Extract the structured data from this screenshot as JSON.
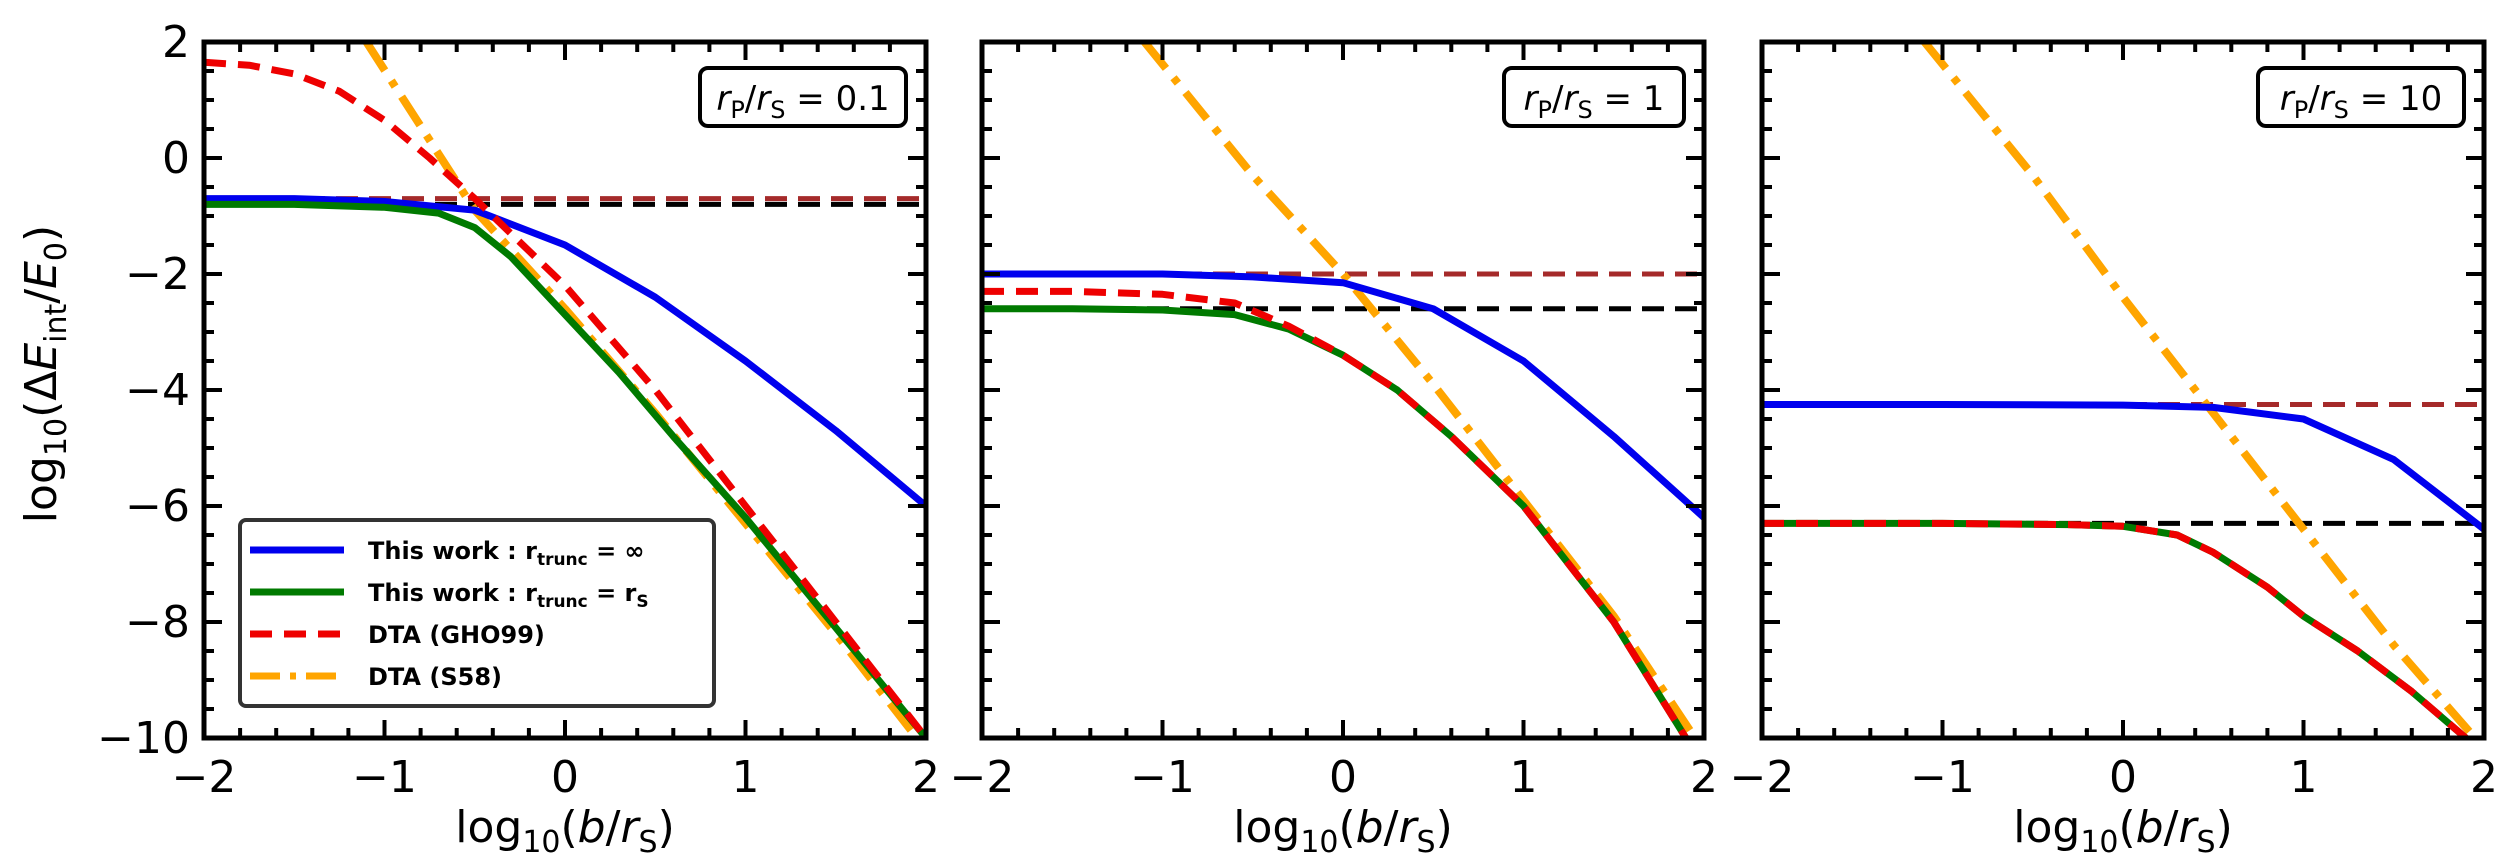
{
  "chart_data": {
    "type": "line",
    "ylabel": "log10(ΔEint/E0)",
    "xlabel": "log10(b/rS)",
    "xlim": [
      -2,
      2
    ],
    "ylim": [
      -10,
      2
    ],
    "xticks": [
      -2,
      -1,
      0,
      1,
      2
    ],
    "xtick_labels": [
      "−2",
      "−1",
      "0",
      "1",
      "2"
    ],
    "yticks": [
      -10,
      -8,
      -6,
      -4,
      -2,
      0,
      2
    ],
    "ytick_labels": [
      "−10",
      "−8",
      "−6",
      "−4",
      "−2",
      "0",
      "2"
    ],
    "legend": {
      "location": "lower-left (first panel)",
      "entries": [
        {
          "label": "This work : r",
          "sub": "trunc",
          "suffix": " = ∞",
          "color": "#0000ee",
          "style": "solid"
        },
        {
          "label": "This work : r",
          "sub": "trunc",
          "suffix": " = r",
          "suffix_sub": "S",
          "color": "#007a00",
          "style": "solid"
        },
        {
          "label": "DTA (GHO99)",
          "color": "#ee0000",
          "style": "dashed"
        },
        {
          "label": "DTA (S58)",
          "color": "#ffa500",
          "style": "dashdot"
        }
      ]
    },
    "panels": [
      {
        "annotation": "rP/rS = 0.1",
        "annotation_value": "0.1",
        "series": [
          {
            "name": "This work: r_trunc = ∞",
            "color": "#0000ee",
            "x": [
              -2,
              -1.5,
              -1,
              -0.5,
              0,
              0.5,
              1,
              1.5,
              2
            ],
            "y": [
              -0.7,
              -0.7,
              -0.75,
              -0.9,
              -1.5,
              -2.4,
              -3.5,
              -4.7,
              -6.0
            ]
          },
          {
            "name": "This work: r_trunc = rS",
            "color": "#007a00",
            "x": [
              -2,
              -1.5,
              -1,
              -0.7,
              -0.5,
              -0.3,
              0,
              0.3,
              0.6,
              1,
              1.5,
              2
            ],
            "y": [
              -0.8,
              -0.8,
              -0.85,
              -0.95,
              -1.2,
              -1.7,
              -2.7,
              -3.7,
              -4.8,
              -6.2,
              -8.1,
              -10.0
            ]
          },
          {
            "name": "DTA (GHO99)",
            "color": "#ee0000",
            "x": [
              -2,
              -1.75,
              -1.5,
              -1.25,
              -1,
              -0.75,
              -0.5,
              -0.3,
              0,
              0.5,
              1,
              1.5,
              2
            ],
            "y": [
              1.65,
              1.6,
              1.45,
              1.15,
              0.65,
              0.0,
              -0.7,
              -1.3,
              -2.2,
              -4.0,
              -6.0,
              -8.0,
              -10.0
            ]
          },
          {
            "name": "DTA (S58)",
            "color": "#ffa500",
            "x": [
              -1.1,
              -0.5,
              0,
              0.5,
              1,
              1.5,
              1.95
            ],
            "y": [
              2.0,
              -0.9,
              -2.6,
              -4.4,
              -6.3,
              -8.2,
              -10.0
            ]
          },
          {
            "name": "GHO99 limit",
            "color": "#a52a2a",
            "x": [
              -2,
              2
            ],
            "y": [
              -0.7,
              -0.7
            ]
          },
          {
            "name": "rS limit",
            "color": "#000000",
            "x": [
              -2,
              2
            ],
            "y": [
              -0.8,
              -0.8
            ]
          }
        ]
      },
      {
        "annotation": "rP/rS = 1",
        "annotation_value": "1",
        "series": [
          {
            "name": "This work: r_trunc = ∞",
            "color": "#0000ee",
            "x": [
              -2,
              -1,
              -0.5,
              0,
              0.5,
              1,
              1.5,
              2
            ],
            "y": [
              -2.0,
              -2.0,
              -2.05,
              -2.15,
              -2.6,
              -3.5,
              -4.8,
              -6.2
            ]
          },
          {
            "name": "This work: r_trunc = rS",
            "color": "#007a00",
            "x": [
              -2,
              -1.5,
              -1,
              -0.6,
              -0.3,
              0,
              0.3,
              0.6,
              1,
              1.5,
              1.9
            ],
            "y": [
              -2.6,
              -2.6,
              -2.62,
              -2.7,
              -2.95,
              -3.4,
              -4.0,
              -4.8,
              -6.0,
              -8.0,
              -10.0
            ]
          },
          {
            "name": "DTA (GHO99)",
            "color": "#ee0000",
            "x": [
              -2,
              -1.5,
              -1,
              -0.6,
              -0.3,
              0,
              0.3,
              0.6,
              1,
              1.5,
              1.9
            ],
            "y": [
              -2.3,
              -2.3,
              -2.35,
              -2.5,
              -2.9,
              -3.4,
              -4.0,
              -4.8,
              -6.0,
              -8.0,
              -10.0
            ]
          },
          {
            "name": "DTA (S58)",
            "color": "#ffa500",
            "x": [
              -1.1,
              -0.5,
              0,
              0.5,
              1,
              1.5,
              1.95
            ],
            "y": [
              2.0,
              -0.3,
              -2.0,
              -3.9,
              -5.9,
              -7.9,
              -10.0
            ]
          },
          {
            "name": "GHO99 limit",
            "color": "#a52a2a",
            "x": [
              -2,
              2
            ],
            "y": [
              -2.0,
              -2.0
            ]
          },
          {
            "name": "rS limit",
            "color": "#000000",
            "x": [
              -2,
              2
            ],
            "y": [
              -2.6,
              -2.6
            ]
          }
        ]
      },
      {
        "annotation": "rP/rS = 10",
        "annotation_value": "10",
        "series": [
          {
            "name": "This work: r_trunc = ∞",
            "color": "#0000ee",
            "x": [
              -2,
              -1,
              0,
              0.5,
              1,
              1.5,
              2
            ],
            "y": [
              -4.25,
              -4.25,
              -4.26,
              -4.3,
              -4.5,
              -5.2,
              -6.4
            ]
          },
          {
            "name": "This work: r_trunc = rS",
            "color": "#007a00",
            "x": [
              -2,
              -1,
              -0.3,
              0,
              0.3,
              0.5,
              0.8,
              1.0,
              1.3,
              1.6,
              1.9
            ],
            "y": [
              -6.3,
              -6.3,
              -6.32,
              -6.35,
              -6.5,
              -6.8,
              -7.4,
              -7.9,
              -8.5,
              -9.2,
              -10.0
            ]
          },
          {
            "name": "DTA (GHO99)",
            "color": "#ee0000",
            "x": [
              -2,
              -1,
              -0.3,
              0,
              0.3,
              0.5,
              0.8,
              1.0,
              1.3,
              1.6,
              1.9
            ],
            "y": [
              -6.3,
              -6.3,
              -6.32,
              -6.35,
              -6.5,
              -6.8,
              -7.4,
              -7.9,
              -8.5,
              -9.2,
              -10.0
            ]
          },
          {
            "name": "DTA (S58)",
            "color": "#ffa500",
            "x": [
              -1.1,
              -0.5,
              0,
              0.5,
              1,
              1.5,
              1.95
            ],
            "y": [
              2.0,
              -0.3,
              -2.4,
              -4.4,
              -6.4,
              -8.4,
              -10.0
            ]
          },
          {
            "name": "GHO99 limit",
            "color": "#a52a2a",
            "x": [
              -2,
              2
            ],
            "y": [
              -4.25,
              -4.25
            ]
          },
          {
            "name": "rS limit",
            "color": "#000000",
            "x": [
              -2,
              2
            ],
            "y": [
              -6.3,
              -6.3
            ]
          }
        ]
      }
    ]
  }
}
